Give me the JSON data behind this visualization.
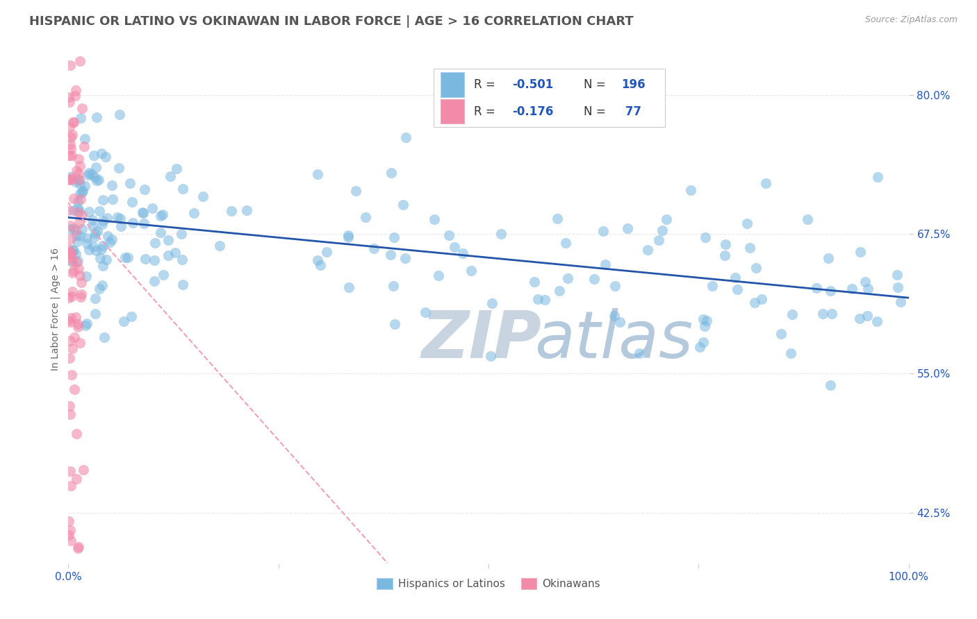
{
  "title": "HISPANIC OR LATINO VS OKINAWAN IN LABOR FORCE | AGE > 16 CORRELATION CHART",
  "source_text": "Source: ZipAtlas.com",
  "ylabel": "In Labor Force | Age > 16",
  "xlim": [
    0.0,
    1.0
  ],
  "ylim": [
    0.38,
    0.835
  ],
  "yticks": [
    0.425,
    0.55,
    0.675,
    0.8
  ],
  "ytick_labels": [
    "42.5%",
    "55.0%",
    "67.5%",
    "80.0%"
  ],
  "xtick_labels": [
    "0.0%",
    "",
    "",
    "",
    "100.0%"
  ],
  "blue_color": "#7ab8e0",
  "pink_color": "#f28aaa",
  "blue_edge_color": "#5590c0",
  "pink_edge_color": "#e06080",
  "blue_line_color": "#2255aa",
  "pink_line_color": "#f0a0b8",
  "title_fontsize": 13,
  "label_fontsize": 10,
  "tick_fontsize": 11,
  "blue_trend_x0": 0.0,
  "blue_trend_y0": 0.69,
  "blue_trend_x1": 1.0,
  "blue_trend_y1": 0.618,
  "pink_trend_x0": -0.02,
  "pink_trend_y0": 0.72,
  "pink_trend_x1": 0.38,
  "pink_trend_y1": 0.38,
  "background_color": "#ffffff",
  "grid_color": "#e8e8e8",
  "watermark_zip_color": "#c8d4e0",
  "watermark_atlas_color": "#a8c0d8"
}
